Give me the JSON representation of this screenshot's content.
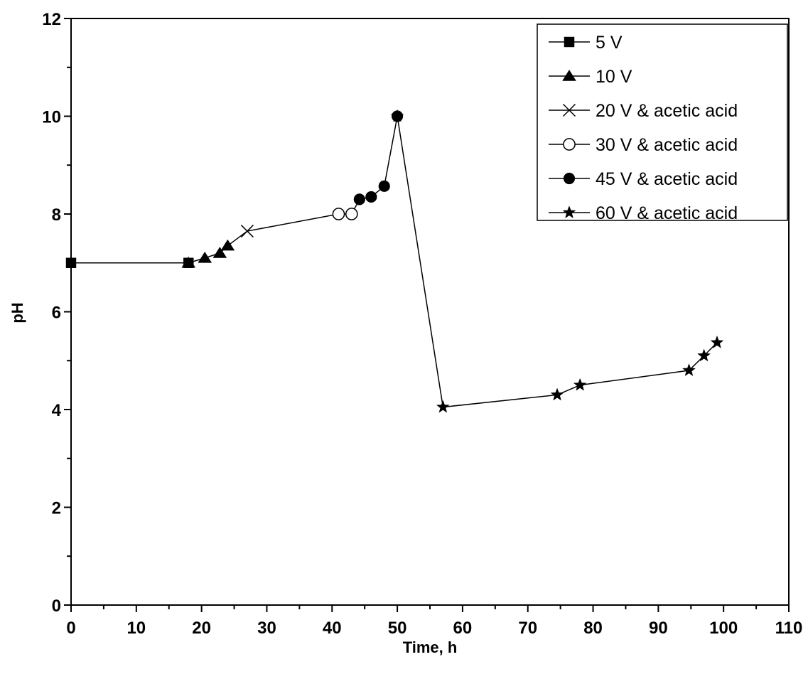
{
  "chart_data": {
    "type": "line",
    "title": "",
    "xlabel": "Time, h",
    "ylabel": "pH",
    "xlim": [
      0,
      110
    ],
    "ylim": [
      0,
      12
    ],
    "x_ticks": [
      0,
      10,
      20,
      30,
      40,
      50,
      60,
      70,
      80,
      90,
      100,
      110
    ],
    "y_ticks": [
      0,
      2,
      4,
      6,
      8,
      10,
      12
    ],
    "grid": false,
    "legend_position": "top-right",
    "line_color": "#000000",
    "series": [
      {
        "name": "5 V",
        "marker": "square",
        "x": [
          0,
          18
        ],
        "y": [
          7.0,
          7.0
        ]
      },
      {
        "name": "10 V",
        "marker": "triangle",
        "x": [
          18,
          20.5,
          22.8,
          24
        ],
        "y": [
          7.0,
          7.1,
          7.2,
          7.35
        ]
      },
      {
        "name": "20 V & acetic acid",
        "marker": "cross",
        "x": [
          27
        ],
        "y": [
          7.65
        ]
      },
      {
        "name": "30 V & acetic acid",
        "marker": "open-circle",
        "x": [
          41,
          43
        ],
        "y": [
          8.0,
          8.0
        ]
      },
      {
        "name": "45 V & acetic acid",
        "marker": "filled-circle",
        "x": [
          44.2,
          46,
          48,
          50
        ],
        "y": [
          8.3,
          8.35,
          8.57,
          10.0
        ]
      },
      {
        "name": "60 V & acetic acid",
        "marker": "star",
        "x": [
          50,
          57,
          74.5,
          78,
          94.7,
          97,
          99
        ],
        "y": [
          10.0,
          4.05,
          4.3,
          4.5,
          4.8,
          5.1,
          5.37
        ]
      }
    ]
  }
}
